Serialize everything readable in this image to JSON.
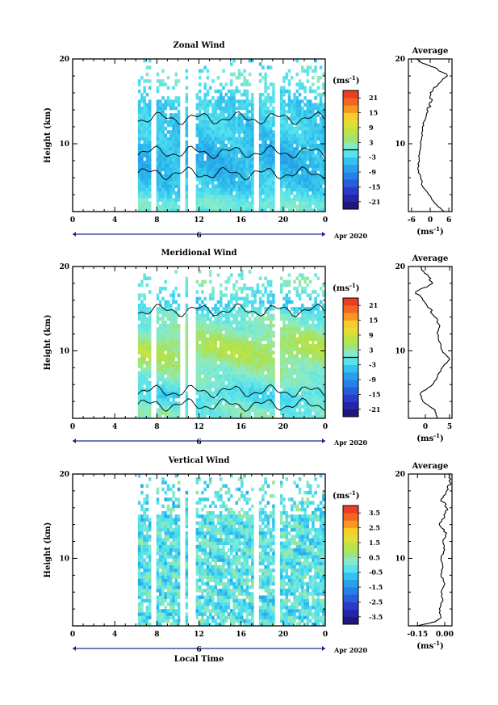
{
  "chart_data": [
    {
      "type": "heatmap",
      "title": "Zonal Wind",
      "ylabel": "Height (km)",
      "yticks": [
        "20",
        "10"
      ],
      "ylim": [
        2,
        20
      ],
      "xticks": [
        "0",
        "4",
        "8",
        "12",
        "16",
        "20",
        "0"
      ],
      "xlim": [
        0,
        24
      ],
      "date_day": "6",
      "date_label": "Apr 2020",
      "colorbar": {
        "unit_label": "(ms",
        "unit_exp": "-1",
        "unit_close": ")",
        "ticks": [
          "21",
          "15",
          "9",
          "3",
          "-3",
          "-9",
          "-15",
          "-21"
        ],
        "range": [
          -24,
          24
        ]
      },
      "data_start_hour": 6.2,
      "max_height_km": 20,
      "gaps": [
        [
          7.6,
          7.9
        ],
        [
          10.2,
          10.6
        ],
        [
          11.1,
          11.5
        ],
        [
          17.2,
          17.5
        ],
        [
          19.2,
          19.6
        ]
      ],
      "profile": {
        "title": "Average",
        "xticks": [
          "-6",
          "0",
          "6"
        ],
        "xlim": [
          -7,
          7
        ],
        "xlabel": "(ms",
        "xlabel_exp": "-1",
        "xlabel_close": ")",
        "height_km": [
          2.0,
          3.0,
          4.0,
          5.0,
          6.0,
          7.0,
          8.0,
          9.0,
          10.0,
          11.0,
          12.0,
          13.0,
          14.0,
          15.0,
          16.0,
          17.0,
          18.0,
          19.0,
          19.5,
          20.0
        ],
        "values": [
          4.5,
          1.5,
          -0.5,
          -2.5,
          -3.0,
          -4.0,
          -3.5,
          -3.5,
          -3.0,
          -2.5,
          -2.5,
          -1.5,
          -1.0,
          0.5,
          0.0,
          2.5,
          5.5,
          1.5,
          -2.5,
          -4.5
        ]
      }
    },
    {
      "type": "heatmap",
      "title": "Meridional Wind",
      "ylabel": "Height (km)",
      "yticks": [
        "20",
        "10"
      ],
      "ylim": [
        2,
        20
      ],
      "xticks": [
        "0",
        "4",
        "8",
        "12",
        "16",
        "20",
        "0"
      ],
      "xlim": [
        0,
        24
      ],
      "date_day": "6",
      "date_label": "Apr 2020",
      "colorbar": {
        "unit_label": "(ms",
        "unit_exp": "-1",
        "unit_close": ")",
        "ticks": [
          "21",
          "15",
          "9",
          "3",
          "-3",
          "-9",
          "-15",
          "-21"
        ],
        "range": [
          -24,
          24
        ]
      },
      "data_start_hour": 6.2,
      "max_height_km": 19.5,
      "gaps": [
        [
          7.6,
          7.9
        ],
        [
          10.2,
          10.6
        ],
        [
          11.1,
          11.5
        ],
        [
          19.2,
          19.6
        ]
      ],
      "profile": {
        "title": "Average",
        "xticks": [
          "0",
          "5"
        ],
        "xlim": [
          -3.5,
          5.5
        ],
        "xlabel": "(ms",
        "xlabel_exp": "-1",
        "xlabel_close": ")",
        "height_km": [
          2.0,
          3.0,
          4.0,
          5.0,
          6.0,
          7.0,
          8.0,
          9.0,
          10.0,
          11.0,
          12.0,
          13.0,
          14.0,
          15.0,
          16.0,
          17.0,
          18.0,
          19.0,
          20.0
        ],
        "values": [
          2.5,
          2.0,
          -0.5,
          -1.0,
          1.5,
          2.5,
          3.5,
          5.0,
          3.5,
          3.0,
          2.5,
          3.0,
          2.0,
          1.0,
          -0.5,
          -2.0,
          1.5,
          0.5,
          -1.0
        ]
      }
    },
    {
      "type": "heatmap",
      "title": "Vertical Wind",
      "ylabel": "Height (km)",
      "yticks": [
        "20",
        "10"
      ],
      "ylim": [
        2,
        20
      ],
      "xticks": [
        "0",
        "4",
        "8",
        "12",
        "16",
        "20",
        "0"
      ],
      "xlim": [
        0,
        24
      ],
      "date_day": "6",
      "date_label": "Apr 2020",
      "xlabel": "Local Time",
      "colorbar": {
        "unit_label": "(ms",
        "unit_exp": "-1",
        "unit_close": ")",
        "ticks": [
          "3.5",
          "2.5",
          "1.5",
          "0.5",
          "-0.5",
          "-1.5",
          "-2.5",
          "-3.5"
        ],
        "range": [
          -4,
          4
        ]
      },
      "data_start_hour": 6.2,
      "max_height_km": 20,
      "gaps": [
        [
          7.6,
          7.9
        ],
        [
          10.2,
          10.6
        ],
        [
          11.1,
          11.5
        ],
        [
          17.2,
          17.5
        ],
        [
          19.2,
          19.6
        ]
      ],
      "profile": {
        "title": "Average",
        "xticks": [
          "-0.15",
          "0.00"
        ],
        "xlim": [
          -0.2,
          0.04
        ],
        "xlabel": "(ms",
        "xlabel_exp": "-1",
        "xlabel_close": ")",
        "height_km": [
          2.0,
          2.5,
          3.0,
          4.0,
          5.0,
          6.0,
          7.0,
          8.0,
          9.0,
          10.0,
          11.0,
          12.0,
          13.0,
          14.0,
          15.0,
          16.0,
          17.0,
          18.0,
          19.0,
          20.0
        ],
        "values": [
          -0.15,
          -0.05,
          -0.02,
          -0.03,
          -0.01,
          -0.02,
          0.0,
          -0.02,
          -0.01,
          -0.02,
          0.0,
          -0.01,
          0.01,
          -0.03,
          0.0,
          0.01,
          -0.02,
          0.01,
          0.03,
          0.02
        ]
      }
    }
  ]
}
